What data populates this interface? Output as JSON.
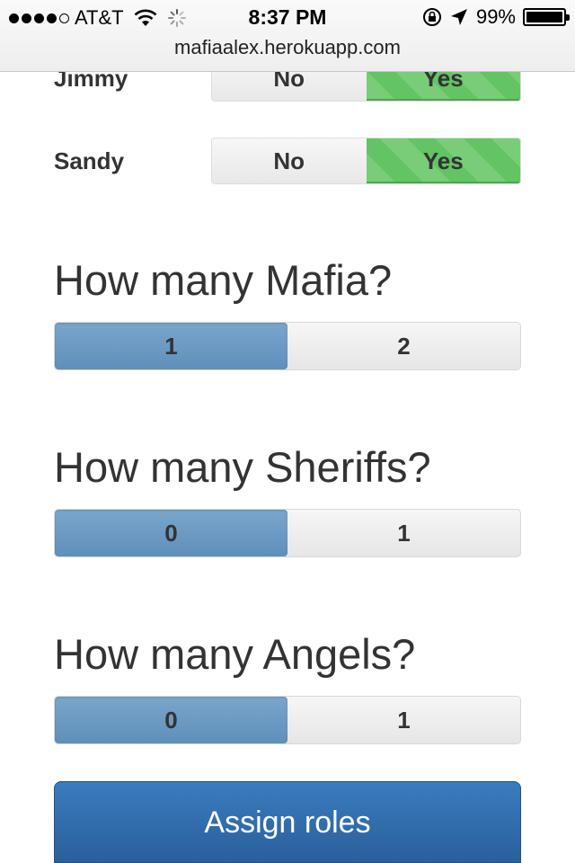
{
  "status": {
    "carrier": "AT&T",
    "time": "8:37 PM",
    "battery": "99%",
    "battery_level": 0.99,
    "signal_bars_filled": 4,
    "signal_bars_total": 5
  },
  "browser": {
    "url": "mafiaalex.herokuapp.com"
  },
  "players": [
    {
      "name": "Jimmy",
      "no_label": "No",
      "yes_label": "Yes",
      "selected": "Yes"
    },
    {
      "name": "Sandy",
      "no_label": "No",
      "yes_label": "Yes",
      "selected": "Yes"
    }
  ],
  "sections": [
    {
      "heading": "How many Mafia?",
      "options": [
        "1",
        "2"
      ],
      "selected": "1"
    },
    {
      "heading": "How many Sheriffs?",
      "options": [
        "0",
        "1"
      ],
      "selected": "0"
    },
    {
      "heading": "How many Angels?",
      "options": [
        "0",
        "1"
      ],
      "selected": "0"
    }
  ],
  "assign_button": "Assign roles",
  "colors": {
    "yes_active": "#62c462",
    "segment_active": "#6d9bc3",
    "primary_button": "#3271b4"
  },
  "icons": [
    "wifi-icon",
    "activity-spinner-icon",
    "rotation-lock-icon",
    "location-arrow-icon",
    "battery-icon"
  ]
}
